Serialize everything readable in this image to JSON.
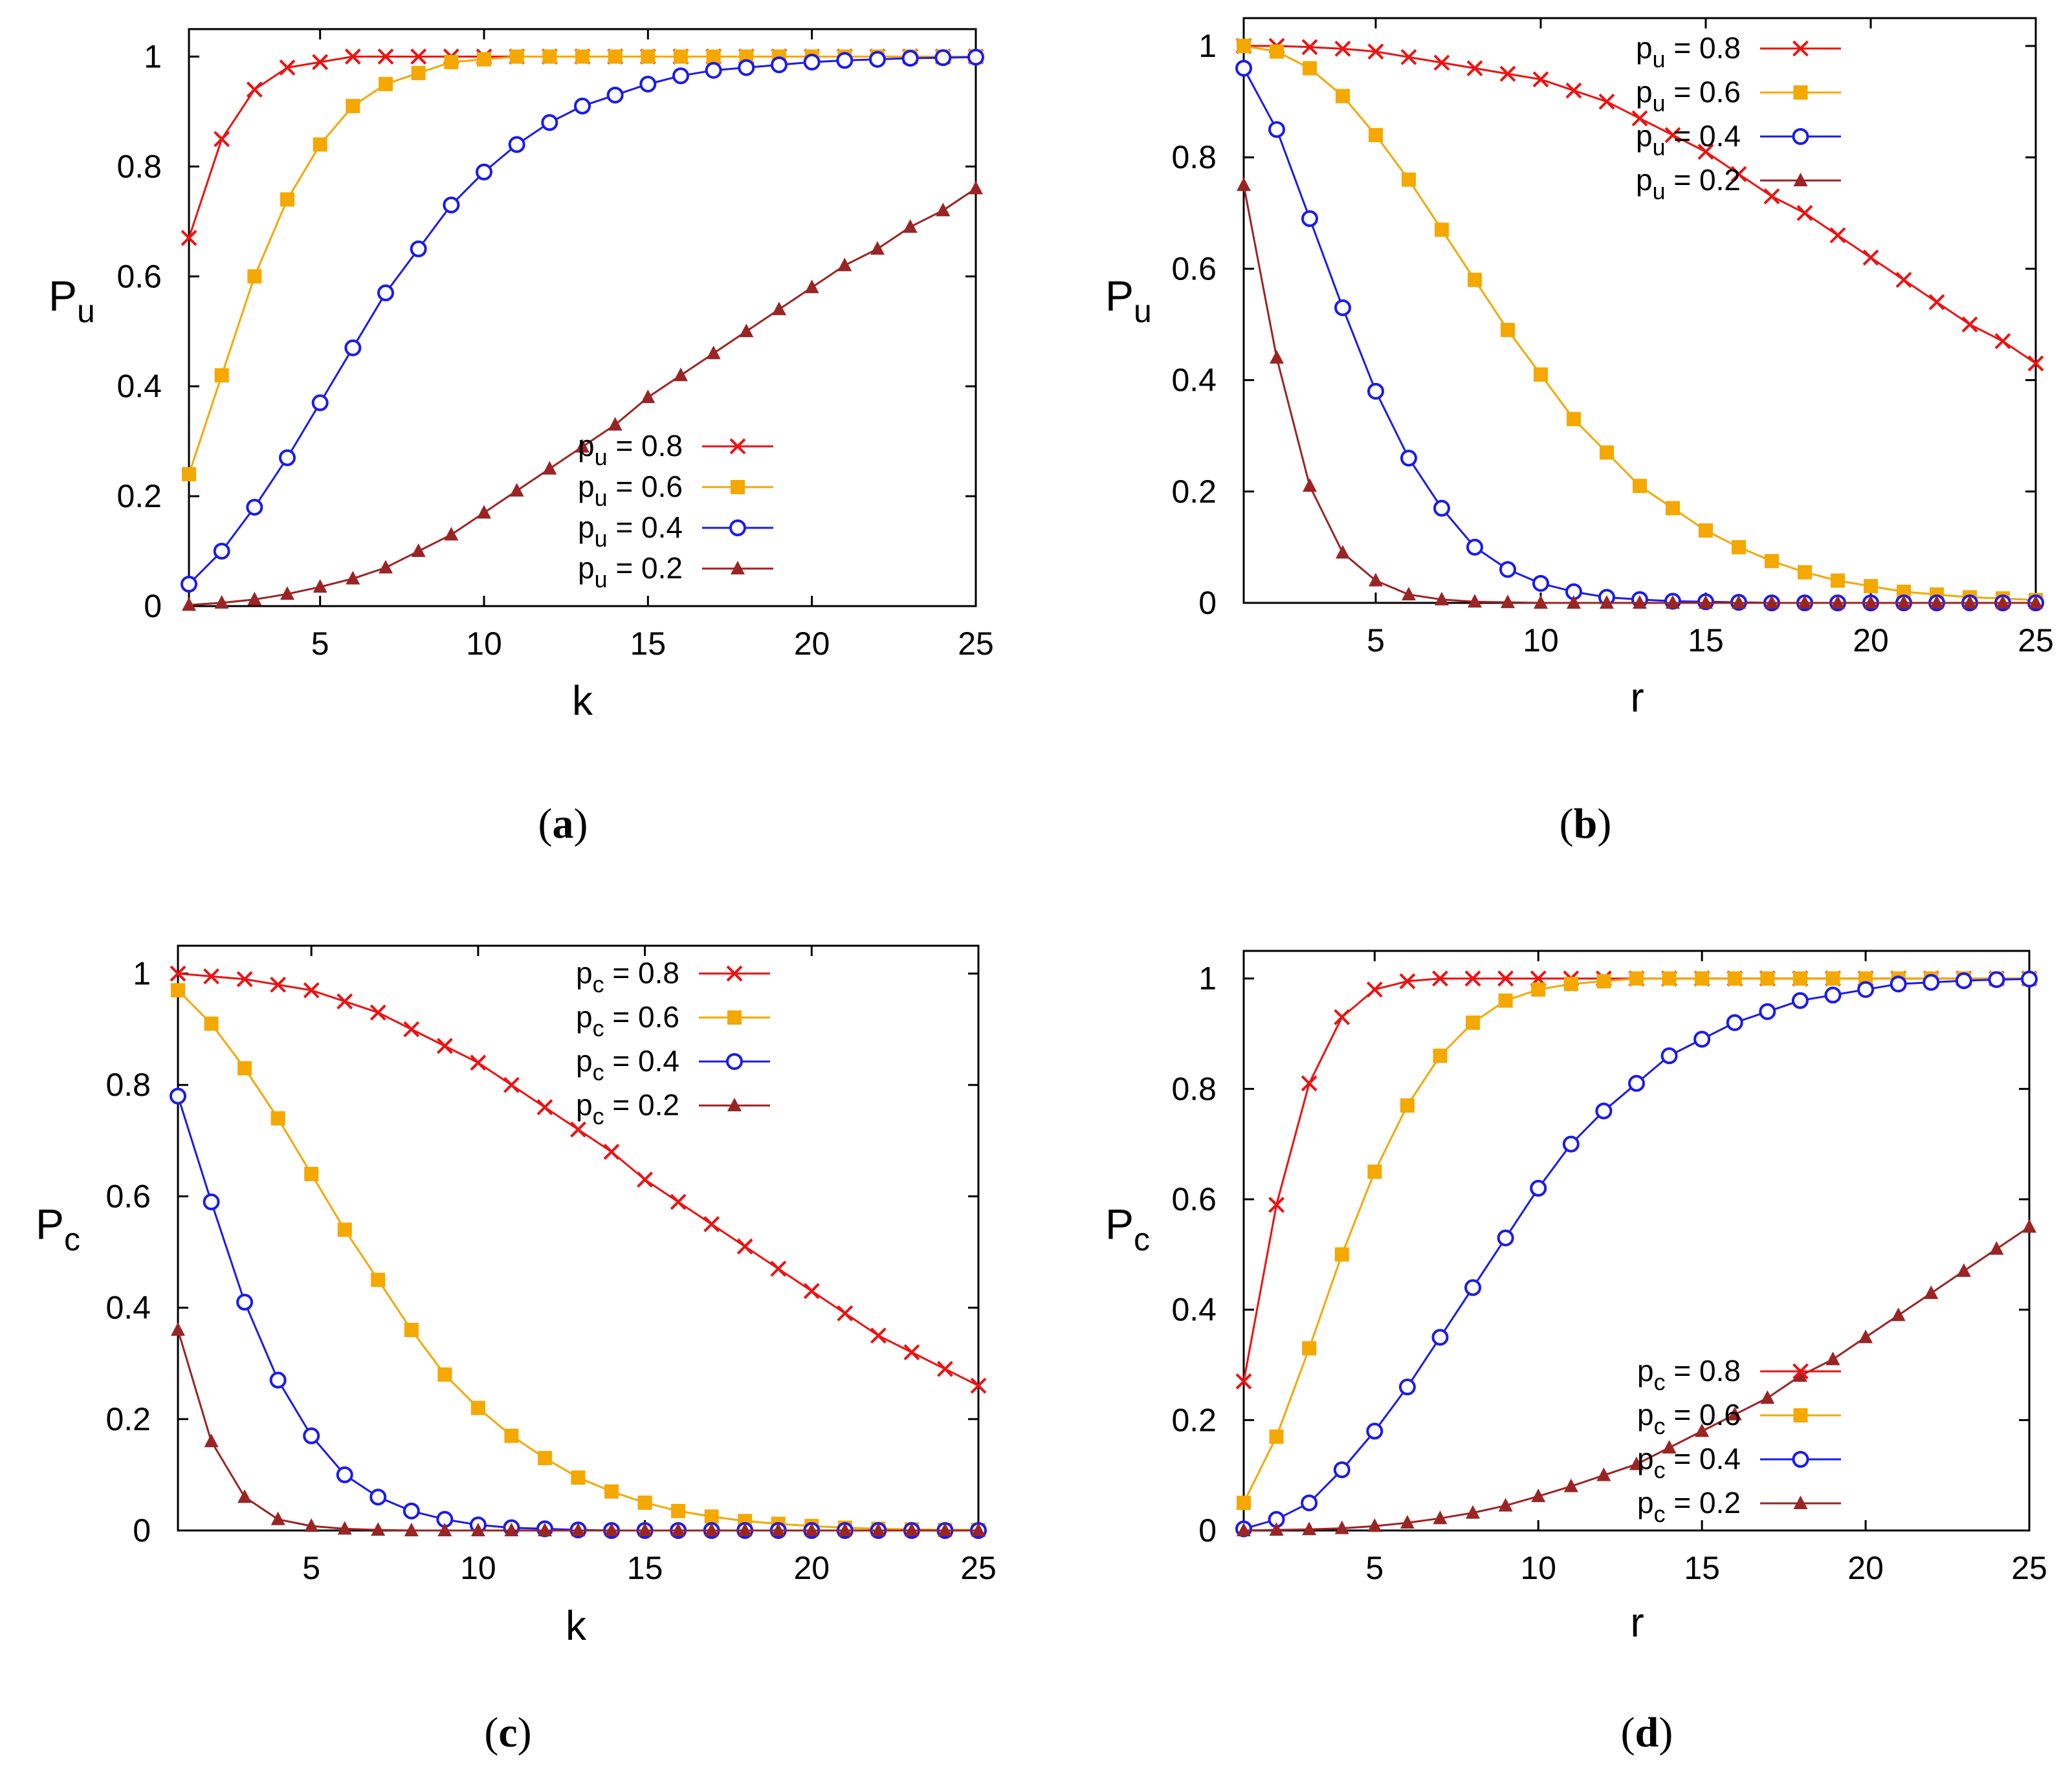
{
  "chart_data": [
    {
      "type": "line",
      "panel": "(a)",
      "xlabel": "k",
      "ylabel": {
        "main": "P",
        "sub": "u"
      },
      "xlim": [
        1,
        25
      ],
      "ylim": [
        0,
        1.05
      ],
      "xticks": [
        5,
        10,
        15,
        20,
        25
      ],
      "yticks": [
        0,
        0.2,
        0.4,
        0.6,
        0.8,
        1
      ],
      "ytick_labels": [
        "0",
        "0.2",
        "0.4",
        "0.6",
        "0.8",
        "1"
      ],
      "legend_position": "bottom-right",
      "x": [
        1,
        2,
        3,
        4,
        5,
        6,
        7,
        8,
        9,
        10,
        11,
        12,
        13,
        14,
        15,
        16,
        17,
        18,
        19,
        20,
        21,
        22,
        23,
        24,
        25
      ],
      "series": [
        {
          "name_main": "p",
          "name_sub": "u",
          "name_rest": " = 0.8",
          "color": "#ee1111",
          "marker": "x",
          "values": [
            0.67,
            0.85,
            0.94,
            0.98,
            0.99,
            1,
            1,
            1,
            1,
            1,
            1,
            1,
            1,
            1,
            1,
            1,
            1,
            1,
            1,
            1,
            1,
            1,
            1,
            1,
            1
          ]
        },
        {
          "name_main": "p",
          "name_sub": "u",
          "name_rest": " = 0.6",
          "color": "#f4a800",
          "marker": "square",
          "values": [
            0.24,
            0.42,
            0.6,
            0.74,
            0.84,
            0.91,
            0.95,
            0.97,
            0.99,
            0.995,
            1,
            1,
            1,
            1,
            1,
            1,
            1,
            1,
            1,
            1,
            1,
            1,
            1,
            1,
            1
          ]
        },
        {
          "name_main": "p",
          "name_sub": "u",
          "name_rest": " = 0.4",
          "color": "#1a1aee",
          "marker": "circle",
          "values": [
            0.04,
            0.1,
            0.18,
            0.27,
            0.37,
            0.47,
            0.57,
            0.65,
            0.73,
            0.79,
            0.84,
            0.88,
            0.91,
            0.93,
            0.95,
            0.965,
            0.975,
            0.98,
            0.985,
            0.99,
            0.993,
            0.995,
            0.997,
            0.998,
            0.999
          ]
        },
        {
          "name_main": "p",
          "name_sub": "u",
          "name_rest": " = 0.2",
          "color": "#9b2424",
          "marker": "triangle",
          "values": [
            0.002,
            0.006,
            0.012,
            0.022,
            0.035,
            0.05,
            0.07,
            0.1,
            0.13,
            0.17,
            0.21,
            0.25,
            0.29,
            0.33,
            0.38,
            0.42,
            0.46,
            0.5,
            0.54,
            0.58,
            0.62,
            0.65,
            0.69,
            0.72,
            0.76
          ]
        }
      ]
    },
    {
      "type": "line",
      "panel": "(b)",
      "xlabel": "r",
      "ylabel": {
        "main": "P",
        "sub": "u"
      },
      "xlim": [
        1,
        25
      ],
      "ylim": [
        0,
        1.05
      ],
      "xticks": [
        5,
        10,
        15,
        20,
        25
      ],
      "yticks": [
        0,
        0.2,
        0.4,
        0.6,
        0.8,
        1
      ],
      "ytick_labels": [
        "0",
        "0.2",
        "0.4",
        "0.6",
        "0.8",
        "1"
      ],
      "legend_position": "top-right",
      "x": [
        1,
        2,
        3,
        4,
        5,
        6,
        7,
        8,
        9,
        10,
        11,
        12,
        13,
        14,
        15,
        16,
        17,
        18,
        19,
        20,
        21,
        22,
        23,
        24,
        25
      ],
      "series": [
        {
          "name_main": "p",
          "name_sub": "u",
          "name_rest": " = 0.8",
          "color": "#ee1111",
          "marker": "x",
          "values": [
            1,
            1,
            0.998,
            0.995,
            0.99,
            0.98,
            0.97,
            0.96,
            0.95,
            0.94,
            0.92,
            0.9,
            0.87,
            0.84,
            0.81,
            0.77,
            0.73,
            0.7,
            0.66,
            0.62,
            0.58,
            0.54,
            0.5,
            0.47,
            0.43
          ]
        },
        {
          "name_main": "p",
          "name_sub": "u",
          "name_rest": " = 0.6",
          "color": "#f4a800",
          "marker": "square",
          "values": [
            1,
            0.99,
            0.96,
            0.91,
            0.84,
            0.76,
            0.67,
            0.58,
            0.49,
            0.41,
            0.33,
            0.27,
            0.21,
            0.17,
            0.13,
            0.1,
            0.075,
            0.055,
            0.04,
            0.03,
            0.02,
            0.015,
            0.01,
            0.008,
            0.005
          ]
        },
        {
          "name_main": "p",
          "name_sub": "u",
          "name_rest": " = 0.4",
          "color": "#1a1aee",
          "marker": "circle",
          "values": [
            0.96,
            0.85,
            0.69,
            0.53,
            0.38,
            0.26,
            0.17,
            0.1,
            0.06,
            0.035,
            0.02,
            0.01,
            0.006,
            0.003,
            0.002,
            0.001,
            0,
            0,
            0,
            0,
            0,
            0,
            0,
            0,
            0
          ]
        },
        {
          "name_main": "p",
          "name_sub": "u",
          "name_rest": " = 0.2",
          "color": "#9b2424",
          "marker": "triangle",
          "values": [
            0.75,
            0.44,
            0.21,
            0.09,
            0.04,
            0.015,
            0.006,
            0.002,
            0.001,
            0,
            0,
            0,
            0,
            0,
            0,
            0,
            0,
            0,
            0,
            0,
            0,
            0,
            0,
            0,
            0
          ]
        }
      ]
    },
    {
      "type": "line",
      "panel": "(c)",
      "xlabel": "k",
      "ylabel": {
        "main": "P",
        "sub": "c"
      },
      "xlim": [
        1,
        25
      ],
      "ylim": [
        0,
        1.05
      ],
      "xticks": [
        5,
        10,
        15,
        20,
        25
      ],
      "yticks": [
        0,
        0.2,
        0.4,
        0.6,
        0.8,
        1
      ],
      "ytick_labels": [
        "0",
        "0.2",
        "0.4",
        "0.6",
        "0.8",
        "1"
      ],
      "legend_position": "top-right",
      "x": [
        1,
        2,
        3,
        4,
        5,
        6,
        7,
        8,
        9,
        10,
        11,
        12,
        13,
        14,
        15,
        16,
        17,
        18,
        19,
        20,
        21,
        22,
        23,
        24,
        25
      ],
      "series": [
        {
          "name_main": "p",
          "name_sub": "c",
          "name_rest": " = 0.8",
          "color": "#ee1111",
          "marker": "x",
          "values": [
            1,
            0.995,
            0.99,
            0.98,
            0.97,
            0.95,
            0.93,
            0.9,
            0.87,
            0.84,
            0.8,
            0.76,
            0.72,
            0.68,
            0.63,
            0.59,
            0.55,
            0.51,
            0.47,
            0.43,
            0.39,
            0.35,
            0.32,
            0.29,
            0.26
          ]
        },
        {
          "name_main": "p",
          "name_sub": "c",
          "name_rest": " = 0.6",
          "color": "#f4a800",
          "marker": "square",
          "values": [
            0.97,
            0.91,
            0.83,
            0.74,
            0.64,
            0.54,
            0.45,
            0.36,
            0.28,
            0.22,
            0.17,
            0.13,
            0.095,
            0.07,
            0.05,
            0.035,
            0.025,
            0.017,
            0.012,
            0.008,
            0.005,
            0.003,
            0.002,
            0.001,
            0.001
          ]
        },
        {
          "name_main": "p",
          "name_sub": "c",
          "name_rest": " = 0.4",
          "color": "#1a1aee",
          "marker": "circle",
          "values": [
            0.78,
            0.59,
            0.41,
            0.27,
            0.17,
            0.1,
            0.06,
            0.035,
            0.02,
            0.01,
            0.005,
            0.003,
            0.001,
            0,
            0,
            0,
            0,
            0,
            0,
            0,
            0,
            0,
            0,
            0,
            0
          ]
        },
        {
          "name_main": "p",
          "name_sub": "c",
          "name_rest": " = 0.2",
          "color": "#9b2424",
          "marker": "triangle",
          "values": [
            0.36,
            0.16,
            0.06,
            0.02,
            0.008,
            0.003,
            0.001,
            0,
            0,
            0,
            0,
            0,
            0,
            0,
            0,
            0,
            0,
            0,
            0,
            0,
            0,
            0,
            0,
            0,
            0
          ]
        }
      ]
    },
    {
      "type": "line",
      "panel": "(d)",
      "xlabel": "r",
      "ylabel": {
        "main": "P",
        "sub": "c"
      },
      "xlim": [
        1,
        25
      ],
      "ylim": [
        0,
        1.05
      ],
      "xticks": [
        5,
        10,
        15,
        20,
        25
      ],
      "yticks": [
        0,
        0.2,
        0.4,
        0.6,
        0.8,
        1
      ],
      "ytick_labels": [
        "0",
        "0.2",
        "0.4",
        "0.6",
        "0.8",
        "1"
      ],
      "legend_position": "bottom-right",
      "x": [
        1,
        2,
        3,
        4,
        5,
        6,
        7,
        8,
        9,
        10,
        11,
        12,
        13,
        14,
        15,
        16,
        17,
        18,
        19,
        20,
        21,
        22,
        23,
        24,
        25
      ],
      "series": [
        {
          "name_main": "p",
          "name_sub": "c",
          "name_rest": " = 0.8",
          "color": "#ee1111",
          "marker": "x",
          "values": [
            0.27,
            0.59,
            0.81,
            0.93,
            0.98,
            0.995,
            1,
            1,
            1,
            1,
            1,
            1,
            1,
            1,
            1,
            1,
            1,
            1,
            1,
            1,
            1,
            1,
            1,
            1,
            1
          ]
        },
        {
          "name_main": "p",
          "name_sub": "c",
          "name_rest": " = 0.6",
          "color": "#f4a800",
          "marker": "square",
          "values": [
            0.05,
            0.17,
            0.33,
            0.5,
            0.65,
            0.77,
            0.86,
            0.92,
            0.96,
            0.98,
            0.99,
            0.995,
            1,
            1,
            1,
            1,
            1,
            1,
            1,
            1,
            1,
            1,
            1,
            1,
            1
          ]
        },
        {
          "name_main": "p",
          "name_sub": "c",
          "name_rest": " = 0.4",
          "color": "#1a1aee",
          "marker": "circle",
          "values": [
            0.003,
            0.02,
            0.05,
            0.11,
            0.18,
            0.26,
            0.35,
            0.44,
            0.53,
            0.62,
            0.7,
            0.76,
            0.81,
            0.86,
            0.89,
            0.92,
            0.94,
            0.96,
            0.97,
            0.98,
            0.99,
            0.993,
            0.996,
            0.998,
            0.999
          ]
        },
        {
          "name_main": "p",
          "name_sub": "c",
          "name_rest": " = 0.2",
          "color": "#9b2424",
          "marker": "triangle",
          "values": [
            0,
            0.001,
            0.002,
            0.004,
            0.008,
            0.014,
            0.022,
            0.032,
            0.045,
            0.062,
            0.08,
            0.1,
            0.12,
            0.15,
            0.18,
            0.21,
            0.24,
            0.28,
            0.31,
            0.35,
            0.39,
            0.43,
            0.47,
            0.51,
            0.55
          ]
        }
      ]
    }
  ]
}
